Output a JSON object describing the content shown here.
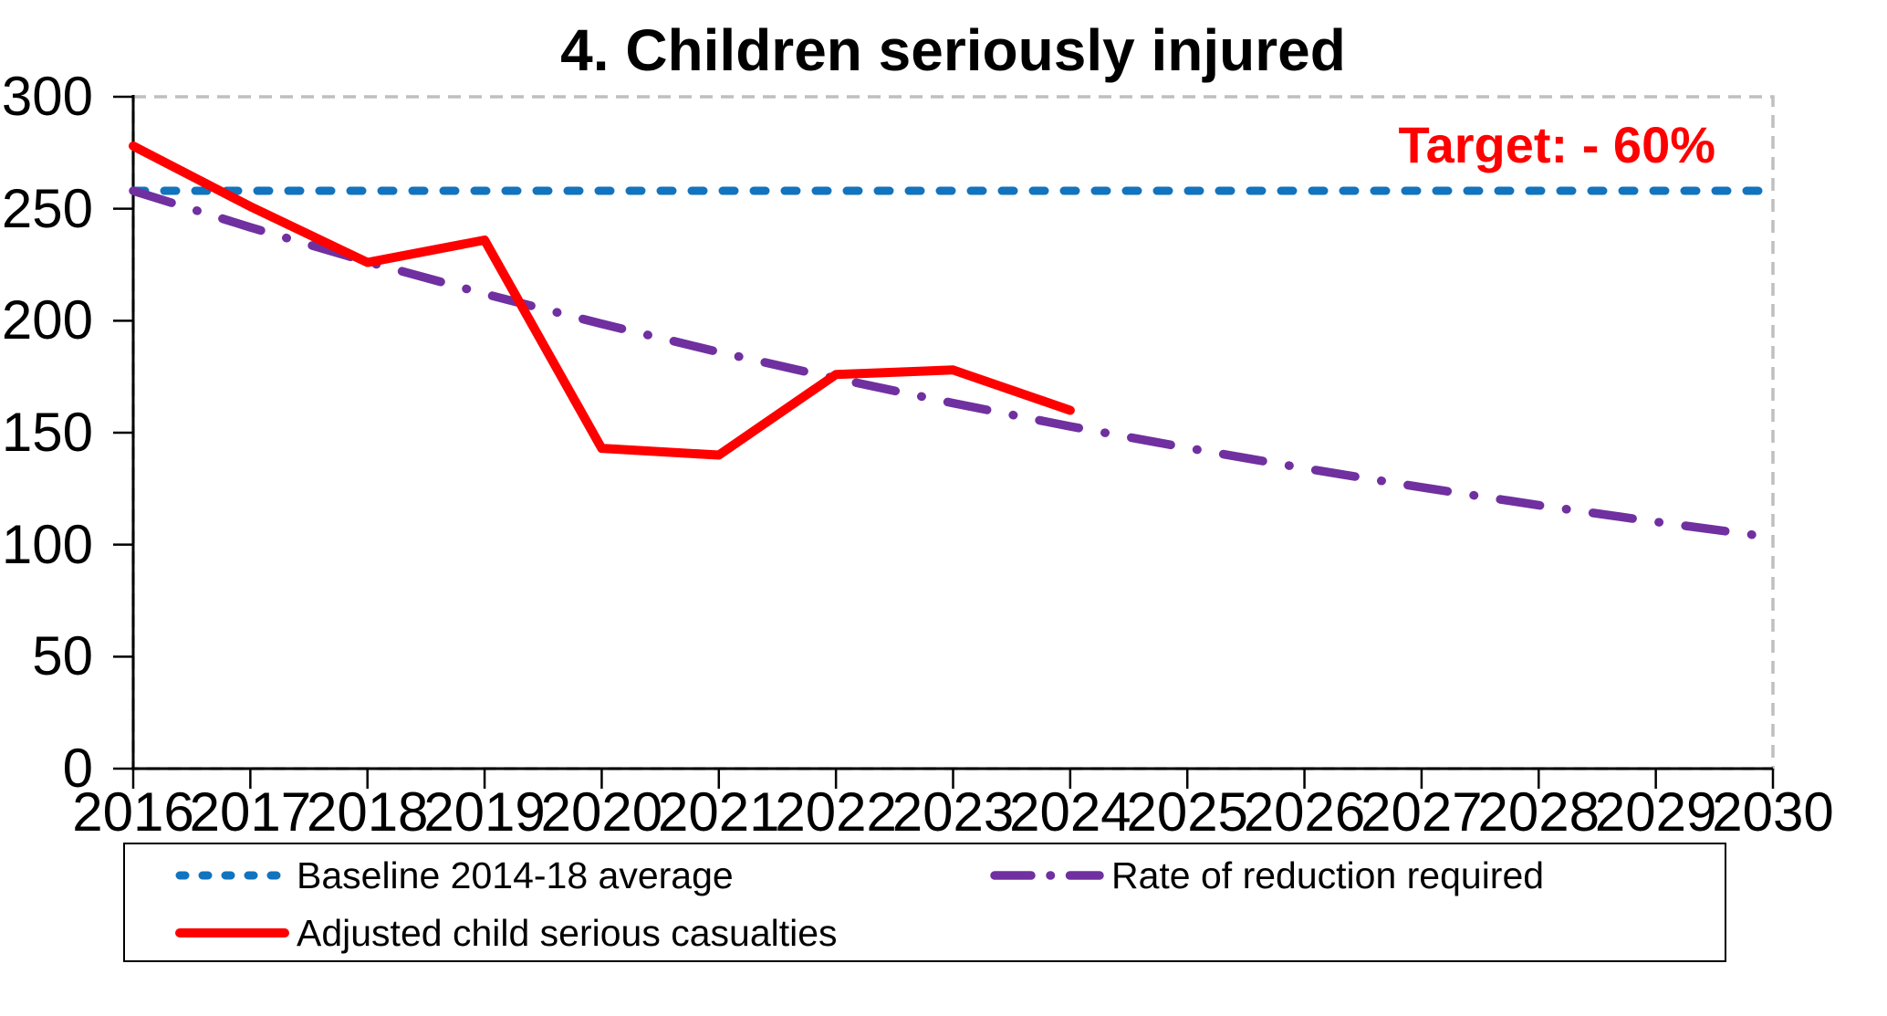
{
  "annotations": {
    "target": {
      "text": "Target: - 60%",
      "color": "#FF0000"
    }
  },
  "colors": {
    "baseline": "#1273BE",
    "required": "#7030A0",
    "adjusted": "#FF0000",
    "plot_border": "#BFBFBF",
    "axis": "#000000",
    "title_text": "#000000"
  },
  "chart_data": {
    "type": "line",
    "title": "4. Children seriously injured",
    "x": [
      2016,
      2017,
      2018,
      2019,
      2020,
      2021,
      2022,
      2023,
      2024,
      2025,
      2026,
      2027,
      2028,
      2029,
      2030
    ],
    "x_tick_labels": [
      "2016",
      "2017",
      "2018",
      "2019",
      "2020",
      "2021",
      "2022",
      "2023",
      "2024",
      "2025",
      "2026",
      "2027",
      "2028",
      "2029",
      "2030"
    ],
    "y_ticks": [
      0,
      50,
      100,
      150,
      200,
      250,
      300
    ],
    "y_tick_labels": [
      "0",
      "50",
      "100",
      "150",
      "200",
      "250",
      "300"
    ],
    "ylim": [
      0,
      300
    ],
    "grid": false,
    "legend_position": "bottom",
    "annotation": "Target: - 60%",
    "series": [
      {
        "name": "Baseline 2014-18 average",
        "style": "dashed",
        "color": "#1273BE",
        "values": [
          258,
          258,
          258,
          258,
          258,
          258,
          258,
          258,
          258,
          258,
          258,
          258,
          258,
          258,
          258
        ]
      },
      {
        "name": "Rate of reduction required",
        "style": "dashdot",
        "color": "#7030A0",
        "values": [
          258,
          241.7,
          226.3,
          212.0,
          198.6,
          186.0,
          174.2,
          163.2,
          152.8,
          143.2,
          134.1,
          125.6,
          117.6,
          110.2,
          103.2
        ]
      },
      {
        "name": "Adjusted child serious casualties",
        "style": "solid",
        "color": "#FF0000",
        "values": [
          278,
          251,
          226,
          236,
          143,
          140,
          176,
          178,
          160,
          null,
          null,
          null,
          null,
          null,
          null
        ]
      }
    ]
  }
}
